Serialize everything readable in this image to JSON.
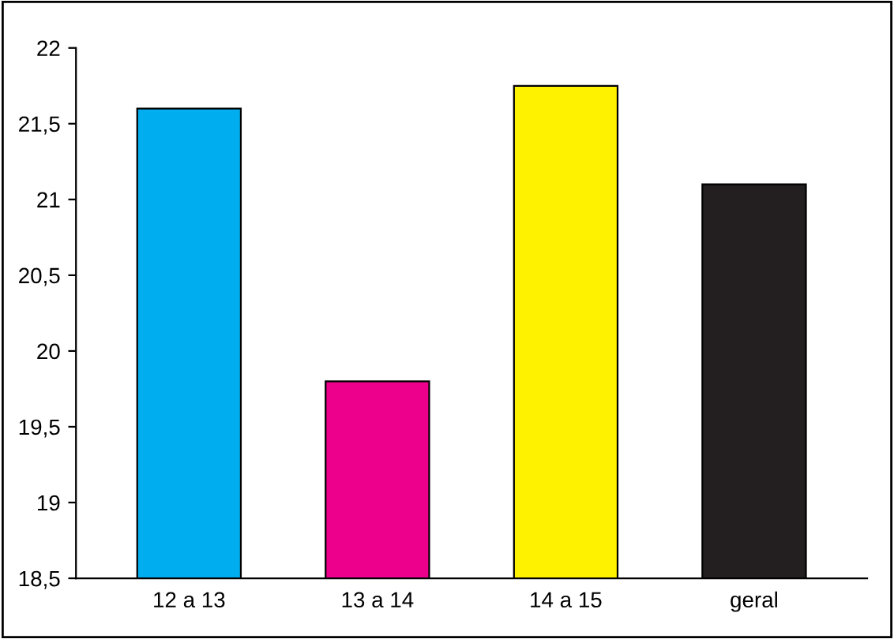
{
  "chart_data": {
    "type": "bar",
    "categories": [
      "12 a 13",
      "13 a 14",
      "14 a 15",
      "geral"
    ],
    "values": [
      21.6,
      19.8,
      21.75,
      21.1
    ],
    "colors": [
      "#00aeef",
      "#ec008c",
      "#fff200",
      "#231f20"
    ],
    "ylim": [
      18.5,
      22
    ],
    "yticks": [
      {
        "value": 18.5,
        "label": "18,5"
      },
      {
        "value": 19,
        "label": "19"
      },
      {
        "value": 19.5,
        "label": "19,5"
      },
      {
        "value": 20,
        "label": "20"
      },
      {
        "value": 20.5,
        "label": "20,5"
      },
      {
        "value": 21,
        "label": "21"
      },
      {
        "value": 21.5,
        "label": "21,5"
      },
      {
        "value": 22,
        "label": "22"
      }
    ],
    "grid": false
  }
}
